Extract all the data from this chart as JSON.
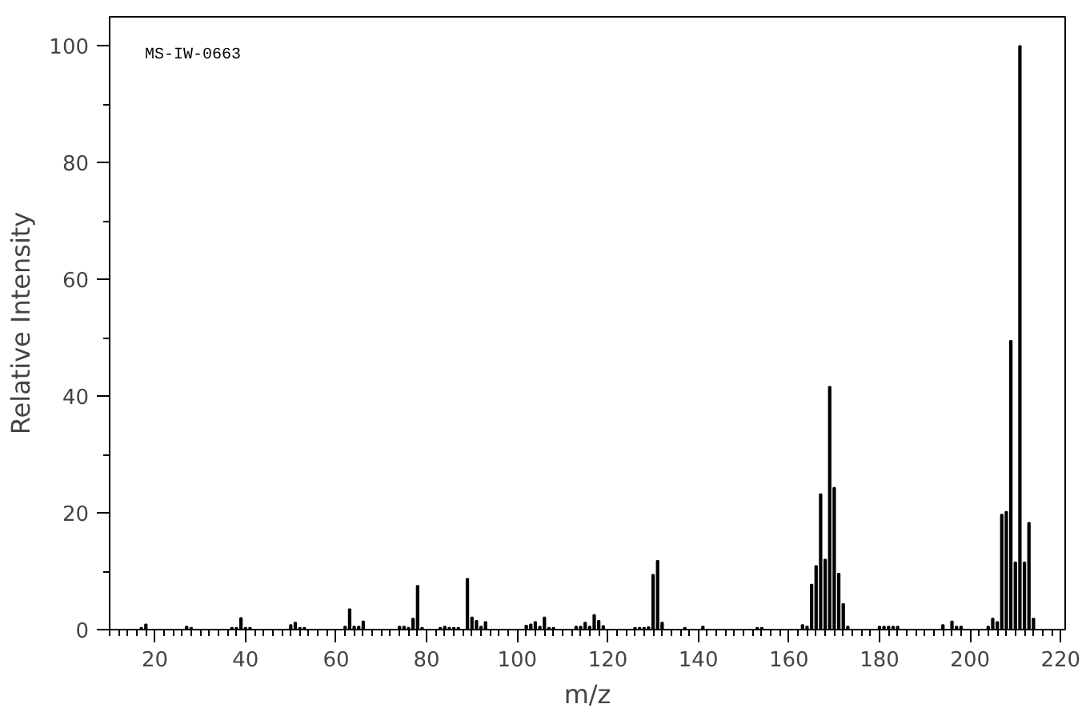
{
  "chart_data": {
    "type": "bar",
    "xlabel": "m/z",
    "ylabel": "Relative Intensity",
    "annotations": [
      "MS-IW-0663"
    ],
    "color": "#000000",
    "grid": false,
    "x": [
      17,
      18,
      27,
      28,
      37,
      38,
      39,
      40,
      41,
      50,
      51,
      52,
      53,
      62,
      63,
      64,
      65,
      66,
      74,
      75,
      76,
      77,
      78,
      79,
      83,
      84,
      85,
      86,
      87,
      89,
      90,
      91,
      92,
      93,
      102,
      103,
      104,
      105,
      106,
      107,
      108,
      113,
      114,
      115,
      116,
      117,
      118,
      119,
      126,
      127,
      128,
      129,
      130,
      131,
      132,
      137,
      141,
      153,
      154,
      163,
      164,
      165,
      166,
      167,
      168,
      169,
      170,
      171,
      172,
      173,
      180,
      181,
      182,
      183,
      184,
      194,
      196,
      197,
      198,
      204,
      205,
      206,
      207,
      208,
      209,
      210,
      211,
      212,
      213,
      214
    ],
    "values": [
      0.3,
      0.9,
      0.5,
      0.3,
      0.3,
      0.3,
      2.0,
      0.3,
      0.3,
      0.8,
      1.2,
      0.3,
      0.3,
      0.5,
      3.5,
      0.5,
      0.5,
      1.4,
      0.5,
      0.5,
      0.3,
      1.9,
      7.5,
      0.3,
      0.3,
      0.5,
      0.3,
      0.3,
      0.3,
      8.7,
      2.1,
      1.5,
      0.5,
      1.3,
      0.7,
      0.9,
      1.3,
      0.5,
      2.1,
      0.3,
      0.3,
      0.5,
      0.5,
      1.2,
      0.5,
      2.5,
      1.5,
      0.6,
      0.3,
      0.3,
      0.3,
      0.4,
      9.4,
      11.8,
      1.2,
      0.3,
      0.5,
      0.3,
      0.3,
      0.8,
      0.5,
      7.7,
      10.9,
      23.2,
      12.0,
      41.6,
      24.3,
      9.6,
      4.4,
      0.5,
      0.5,
      0.5,
      0.5,
      0.5,
      0.5,
      0.8,
      1.4,
      0.5,
      0.5,
      0.5,
      1.9,
      1.3,
      19.7,
      20.2,
      49.5,
      11.5,
      100,
      11.5,
      18.3,
      1.9
    ],
    "xlim": [
      10,
      221
    ],
    "xticks": [
      20,
      40,
      60,
      80,
      100,
      120,
      140,
      160,
      180,
      200,
      220
    ],
    "ylim": [
      0,
      105
    ],
    "yticks": [
      0,
      20,
      40,
      60,
      80,
      100
    ]
  }
}
